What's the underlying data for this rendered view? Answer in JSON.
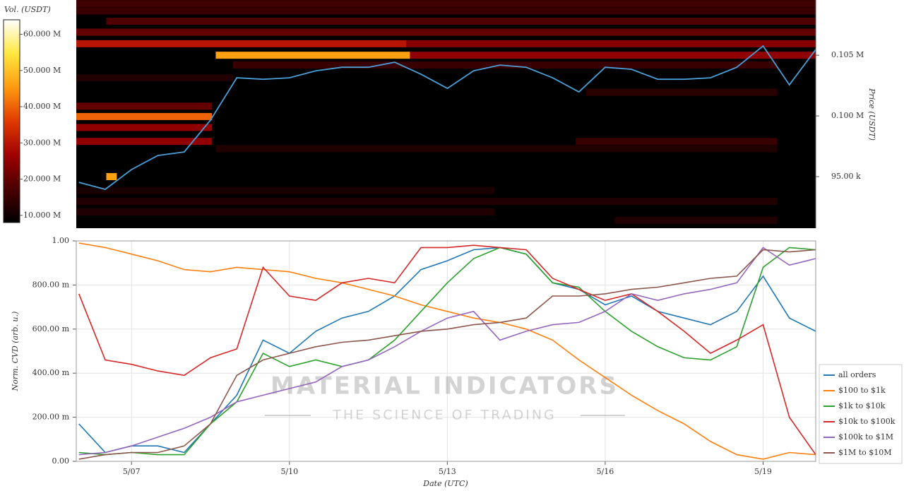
{
  "chart_data": [
    {
      "type": "heatmap",
      "clabel": "Vol. (USDT)",
      "ylabel": "Price (USDT)",
      "colormap": [
        "#000000",
        "#4a0000",
        "#a00000",
        "#e03a00",
        "#ff9a10",
        "#ffe840",
        "#ffffff"
      ],
      "clim": [
        8,
        64
      ],
      "cticks": [
        {
          "value": 10,
          "label": "10.000 M"
        },
        {
          "value": 20,
          "label": "20.000 M"
        },
        {
          "value": 30,
          "label": "30.000 M"
        },
        {
          "value": 40,
          "label": "40.000 M"
        },
        {
          "value": 50,
          "label": "50.000 M"
        },
        {
          "value": 60,
          "label": "60.000 M"
        }
      ],
      "xlim": [
        5.95,
        20.0
      ],
      "ylim": [
        90750,
        109550
      ],
      "yticks": [
        {
          "value": 95000,
          "label": "95.00 k"
        },
        {
          "value": 100000,
          "label": "0.100 M"
        },
        {
          "value": 105000,
          "label": "0.105 M"
        }
      ],
      "bands": [
        {
          "price": 109250,
          "from": 5.95,
          "to": 20.0,
          "volume": 16
        },
        {
          "price": 108650,
          "from": 5.95,
          "to": 20.0,
          "volume": 15
        },
        {
          "price": 107800,
          "from": 6.52,
          "to": 20.0,
          "volume": 18
        },
        {
          "price": 106900,
          "from": 5.95,
          "to": 20.0,
          "volume": 20
        },
        {
          "price": 105950,
          "from": 5.95,
          "to": 12.22,
          "volume": 30
        },
        {
          "price": 105950,
          "from": 12.22,
          "to": 20.0,
          "volume": 24
        },
        {
          "price": 105000,
          "from": 8.6,
          "to": 12.29,
          "volume": 46
        },
        {
          "price": 105000,
          "from": 12.29,
          "to": 20.0,
          "volume": 25
        },
        {
          "price": 104200,
          "from": 8.93,
          "to": 19.27,
          "volume": 15
        },
        {
          "price": 103150,
          "from": 5.95,
          "to": 8.93,
          "volume": 12
        },
        {
          "price": 101950,
          "from": 15.64,
          "to": 19.27,
          "volume": 13
        },
        {
          "price": 100800,
          "from": 5.95,
          "to": 8.53,
          "volume": 20
        },
        {
          "price": 99950,
          "from": 5.95,
          "to": 8.53,
          "volume": 40
        },
        {
          "price": 99050,
          "from": 5.95,
          "to": 8.53,
          "volume": 25
        },
        {
          "price": 97900,
          "from": 5.95,
          "to": 8.53,
          "volume": 25
        },
        {
          "price": 97900,
          "from": 15.44,
          "to": 19.27,
          "volume": 15
        },
        {
          "price": 97300,
          "from": 8.6,
          "to": 19.27,
          "volume": 12
        },
        {
          "price": 95000,
          "from": 6.52,
          "to": 6.72,
          "volume": 46
        },
        {
          "price": 93850,
          "from": 5.95,
          "to": 13.9,
          "volume": 11
        },
        {
          "price": 92950,
          "from": 5.95,
          "to": 19.27,
          "volume": 12
        },
        {
          "price": 92100,
          "from": 5.95,
          "to": 13.9,
          "volume": 12
        },
        {
          "price": 91400,
          "from": 16.18,
          "to": 19.27,
          "volume": 12
        }
      ],
      "line_color": "#4a9fd8",
      "x": [
        6.0,
        6.5,
        7.0,
        7.5,
        8.0,
        8.5,
        9.0,
        9.5,
        10.0,
        10.5,
        11.0,
        11.5,
        12.0,
        12.5,
        13.0,
        13.5,
        14.0,
        14.5,
        15.0,
        15.5,
        16.0,
        16.5,
        17.0,
        17.5,
        18.0,
        18.5,
        19.0,
        19.5,
        20.0
      ],
      "values": [
        94530,
        93950,
        95580,
        96740,
        97030,
        99650,
        103140,
        103020,
        103140,
        103720,
        104010,
        104010,
        104420,
        103430,
        102270,
        103720,
        104190,
        104010,
        103140,
        101980,
        104010,
        103840,
        103020,
        103020,
        103140,
        104010,
        105760,
        102560,
        105470
      ]
    },
    {
      "type": "line",
      "xlabel": "Date (UTC)",
      "ylabel": "Norm. CVD (arb. u.)",
      "watermark": {
        "title": "MATERIAL INDICATORS",
        "subtitle": "THE SCIENCE OF TRADING"
      },
      "grid": true,
      "legend": "right",
      "xlim": [
        5.95,
        20.0
      ],
      "xticks": [
        {
          "value": 7,
          "label": "5/07"
        },
        {
          "value": 10,
          "label": "5/10"
        },
        {
          "value": 13,
          "label": "5/13"
        },
        {
          "value": 16,
          "label": "5/16"
        },
        {
          "value": 19,
          "label": "5/19"
        }
      ],
      "ylim": [
        0,
        1
      ],
      "yticks": [
        {
          "value": 0,
          "label": "0.00"
        },
        {
          "value": 0.2,
          "label": "200.00 m"
        },
        {
          "value": 0.4,
          "label": "400.00 m"
        },
        {
          "value": 0.6,
          "label": "600.00 m"
        },
        {
          "value": 0.8,
          "label": "800.00 m"
        },
        {
          "value": 1,
          "label": "1.00"
        }
      ],
      "x": [
        6.0,
        6.5,
        7.0,
        7.5,
        8.0,
        8.5,
        9.0,
        9.5,
        10.0,
        10.5,
        11.0,
        11.5,
        12.0,
        12.5,
        13.0,
        13.5,
        14.0,
        14.5,
        15.0,
        15.5,
        16.0,
        16.5,
        17.0,
        17.5,
        18.0,
        18.5,
        19.0,
        19.5,
        20.0
      ],
      "series": [
        {
          "name": "all orders",
          "color": "#1f77b4",
          "values": [
            0.17,
            0.04,
            0.07,
            0.07,
            0.04,
            0.17,
            0.3,
            0.55,
            0.49,
            0.59,
            0.65,
            0.68,
            0.75,
            0.87,
            0.91,
            0.96,
            0.97,
            0.94,
            0.81,
            0.78,
            0.71,
            0.75,
            0.68,
            0.65,
            0.62,
            0.68,
            0.84,
            0.65,
            0.59
          ]
        },
        {
          "name": "$100 to $1k",
          "color": "#ff7f0e",
          "values": [
            0.99,
            0.97,
            0.94,
            0.91,
            0.87,
            0.86,
            0.88,
            0.87,
            0.86,
            0.83,
            0.81,
            0.78,
            0.75,
            0.71,
            0.68,
            0.65,
            0.63,
            0.6,
            0.55,
            0.46,
            0.38,
            0.3,
            0.23,
            0.17,
            0.09,
            0.03,
            0.01,
            0.04,
            0.03
          ]
        },
        {
          "name": "$1k to $10k",
          "color": "#2ca02c",
          "values": [
            0.04,
            0.03,
            0.04,
            0.03,
            0.03,
            0.17,
            0.27,
            0.49,
            0.43,
            0.46,
            0.43,
            0.46,
            0.55,
            0.68,
            0.81,
            0.92,
            0.97,
            0.94,
            0.81,
            0.79,
            0.68,
            0.59,
            0.52,
            0.47,
            0.46,
            0.52,
            0.88,
            0.97,
            0.96
          ]
        },
        {
          "name": "$10k to $100k",
          "color": "#d62728",
          "values": [
            0.76,
            0.46,
            0.44,
            0.41,
            0.39,
            0.47,
            0.51,
            0.88,
            0.75,
            0.73,
            0.81,
            0.83,
            0.81,
            0.97,
            0.97,
            0.98,
            0.97,
            0.96,
            0.83,
            0.78,
            0.73,
            0.76,
            0.68,
            0.59,
            0.49,
            0.55,
            0.62,
            0.2,
            0.03
          ]
        },
        {
          "name": "$100k to $1M",
          "color": "#9467bd",
          "values": [
            0.03,
            0.04,
            0.07,
            0.11,
            0.15,
            0.2,
            0.27,
            0.3,
            0.33,
            0.36,
            0.43,
            0.46,
            0.52,
            0.59,
            0.65,
            0.68,
            0.55,
            0.59,
            0.62,
            0.63,
            0.68,
            0.76,
            0.73,
            0.76,
            0.78,
            0.81,
            0.97,
            0.89,
            0.92
          ]
        },
        {
          "name": "$1M to $10M",
          "color": "#8c564b",
          "values": [
            0.01,
            0.03,
            0.04,
            0.04,
            0.07,
            0.17,
            0.39,
            0.46,
            0.49,
            0.52,
            0.54,
            0.55,
            0.57,
            0.59,
            0.6,
            0.62,
            0.63,
            0.65,
            0.75,
            0.75,
            0.76,
            0.78,
            0.79,
            0.81,
            0.83,
            0.84,
            0.96,
            0.95,
            0.96
          ]
        }
      ]
    }
  ]
}
